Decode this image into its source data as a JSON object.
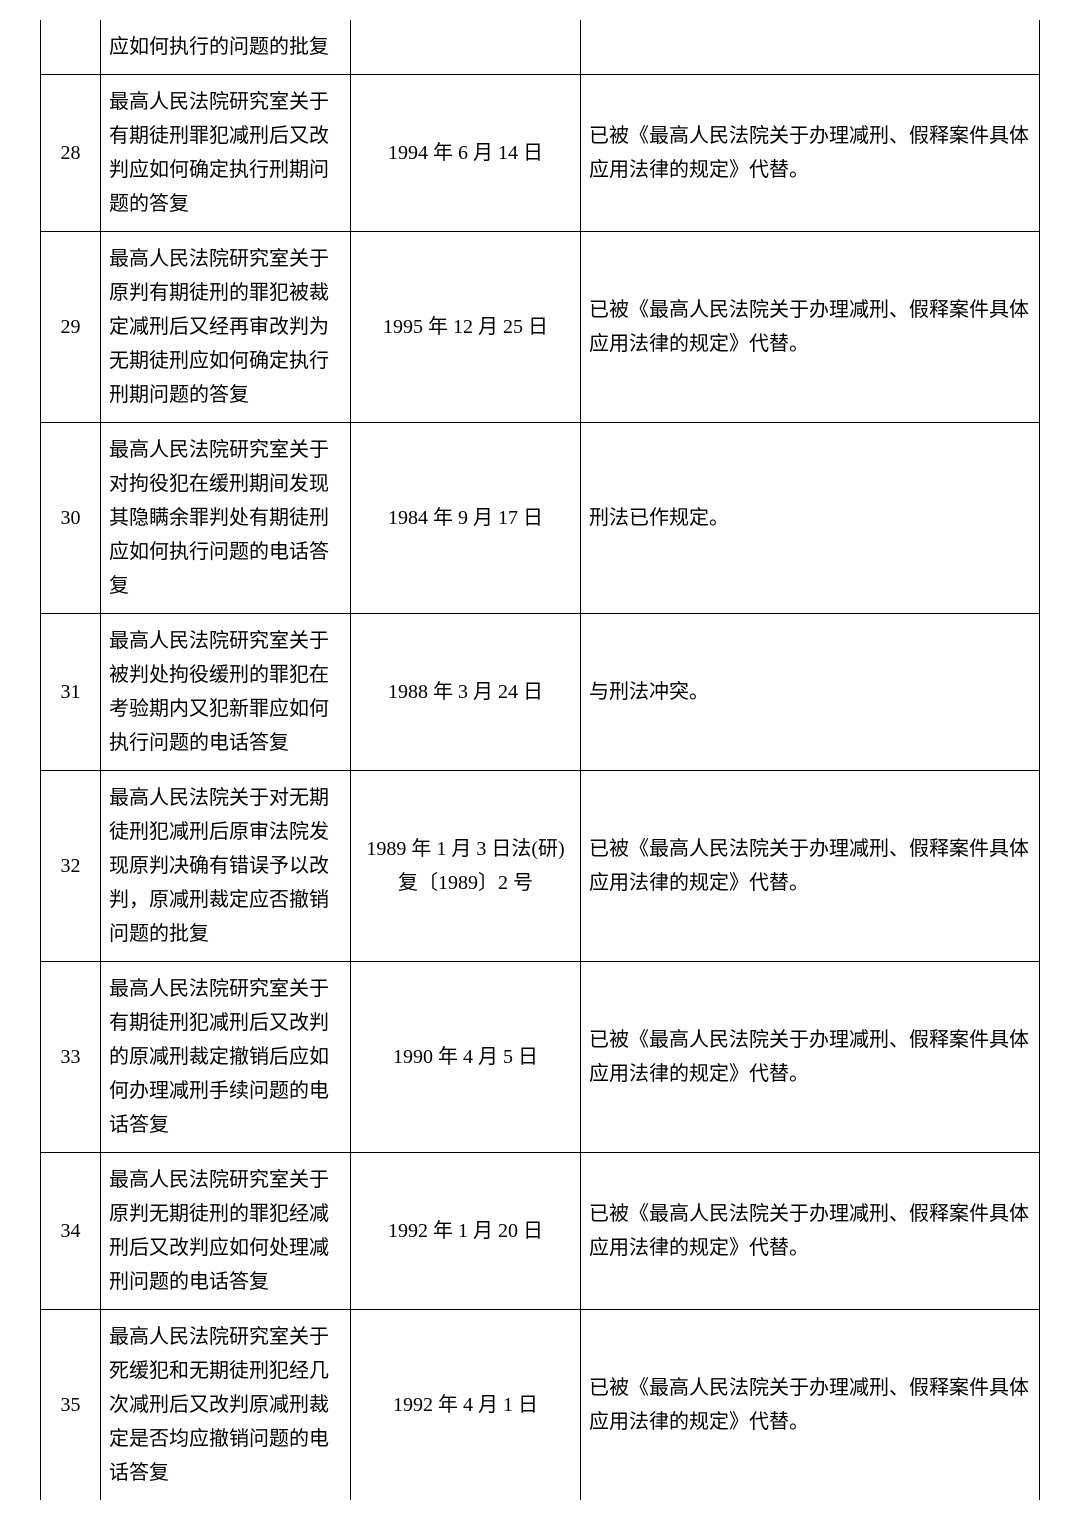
{
  "table": {
    "rows": [
      {
        "num": "",
        "title": "应如何执行的问题的批复",
        "date": "",
        "note": ""
      },
      {
        "num": "28",
        "title": "最高人民法院研究室关于有期徒刑罪犯减刑后又改判应如何确定执行刑期问题的答复",
        "date": "1994 年 6 月 14 日",
        "note": "已被《最高人民法院关于办理减刑、假释案件具体应用法律的规定》代替。"
      },
      {
        "num": "29",
        "title": "最高人民法院研究室关于原判有期徒刑的罪犯被裁定减刑后又经再审改判为无期徒刑应如何确定执行刑期问题的答复",
        "date": "1995 年 12 月 25 日",
        "note": "已被《最高人民法院关于办理减刑、假释案件具体应用法律的规定》代替。"
      },
      {
        "num": "30",
        "title": "最高人民法院研究室关于对拘役犯在缓刑期间发现其隐瞒余罪判处有期徒刑应如何执行问题的电话答复",
        "date": "1984 年 9 月 17 日",
        "note": "刑法已作规定。"
      },
      {
        "num": "31",
        "title": "最高人民法院研究室关于被判处拘役缓刑的罪犯在考验期内又犯新罪应如何执行问题的电话答复",
        "date": "1988 年 3 月 24 日",
        "note": "与刑法冲突。"
      },
      {
        "num": "32",
        "title": "最高人民法院关于对无期徒刑犯减刑后原审法院发现原判决确有错误予以改判，原减刑裁定应否撤销问题的批复",
        "date": "1989 年 1 月 3 日法(研)复〔1989〕2 号",
        "note": "已被《最高人民法院关于办理减刑、假释案件具体应用法律的规定》代替。"
      },
      {
        "num": "33",
        "title": "最高人民法院研究室关于有期徒刑犯减刑后又改判的原减刑裁定撤销后应如何办理减刑手续问题的电话答复",
        "date": "1990 年 4 月 5 日",
        "note": "已被《最高人民法院关于办理减刑、假释案件具体应用法律的规定》代替。"
      },
      {
        "num": "34",
        "title": "最高人民法院研究室关于原判无期徒刑的罪犯经减刑后又改判应如何处理减刑问题的电话答复",
        "date": "1992 年 1 月 20 日",
        "note": "已被《最高人民法院关于办理减刑、假释案件具体应用法律的规定》代替。"
      },
      {
        "num": "35",
        "title": "最高人民法院研究室关于死缓犯和无期徒刑犯经几次减刑后又改判原减刑裁定是否均应撤销问题的电话答复",
        "date": "1992 年 4 月 1 日",
        "note": "已被《最高人民法院关于办理减刑、假释案件具体应用法律的规定》代替。"
      }
    ]
  }
}
